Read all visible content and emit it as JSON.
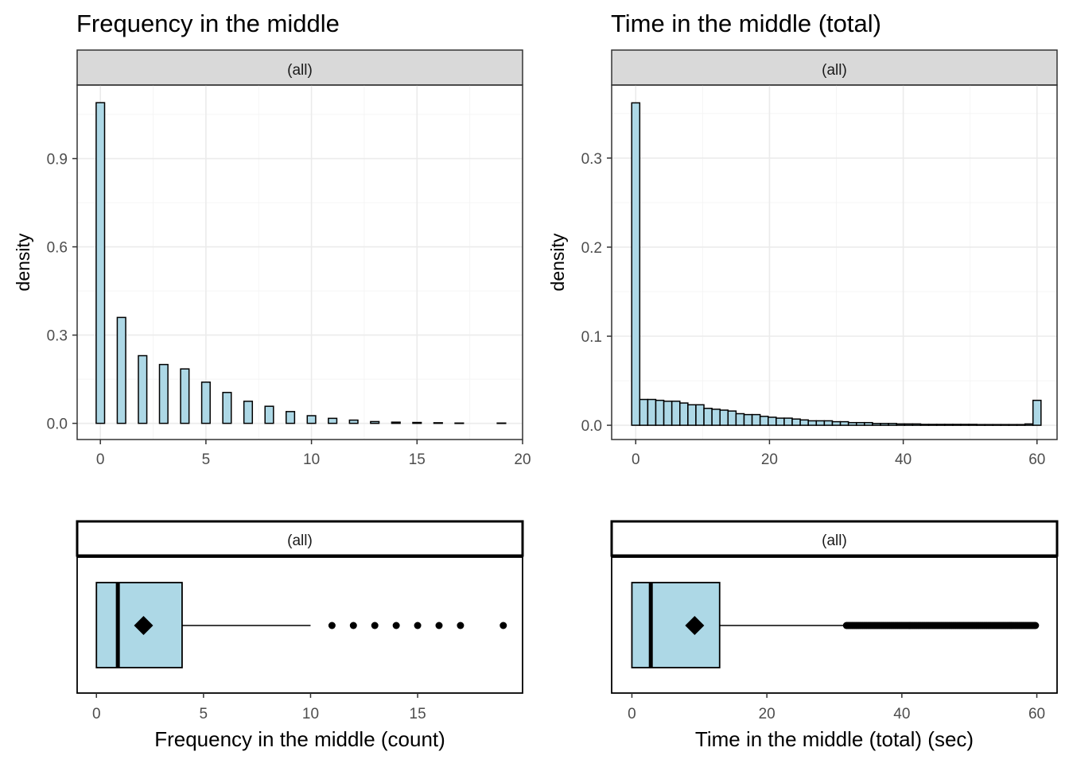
{
  "chart_data": [
    {
      "type": "bar",
      "title": "Frequency in the middle",
      "strip": "(all)",
      "ylabel": "density",
      "xlabel": "",
      "xlim": [
        -1.1,
        20
      ],
      "ylim": [
        -0.055,
        1.15
      ],
      "x_ticks": [
        0,
        5,
        10,
        15,
        20
      ],
      "y_ticks": [
        0.0,
        0.3,
        0.6,
        0.9
      ],
      "y_tick_labels": [
        "0.0",
        "0.3",
        "0.6",
        "0.9"
      ],
      "bar_width": 0.4,
      "grid": true,
      "x": [
        0,
        1,
        2,
        3,
        4,
        5,
        6,
        7,
        8,
        9,
        10,
        11,
        12,
        13,
        14,
        15,
        16,
        17,
        19
      ],
      "values": [
        1.09,
        0.36,
        0.23,
        0.2,
        0.185,
        0.14,
        0.105,
        0.075,
        0.058,
        0.04,
        0.026,
        0.017,
        0.011,
        0.006,
        0.004,
        0.003,
        0.002,
        0.001,
        0.001
      ],
      "color": "#add8e6"
    },
    {
      "type": "bar",
      "title": "Time in the middle (total)",
      "strip": "(all)",
      "ylabel": "density",
      "xlabel": "",
      "xlim": [
        -3.6,
        63
      ],
      "ylim": [
        -0.016,
        0.382
      ],
      "x_ticks": [
        0,
        20,
        40,
        60
      ],
      "y_ticks": [
        0.0,
        0.1,
        0.2,
        0.3
      ],
      "y_tick_labels": [
        "0.0",
        "0.1",
        "0.2",
        "0.3"
      ],
      "bin_width": 1.2,
      "grid": true,
      "x": [
        0,
        1.2,
        2.4,
        3.6,
        4.8,
        6,
        7.2,
        8.4,
        9.6,
        10.8,
        12,
        13.2,
        14.4,
        15.6,
        16.8,
        18,
        19.2,
        20.4,
        21.6,
        22.8,
        24,
        25.2,
        26.4,
        27.6,
        28.8,
        30,
        31.2,
        32.4,
        33.6,
        34.8,
        36,
        37.2,
        38.4,
        39.6,
        40.8,
        42,
        43.2,
        44.4,
        45.6,
        46.8,
        48,
        49.2,
        50.4,
        51.6,
        52.8,
        54,
        55.2,
        56.4,
        57.6,
        58.8,
        60
      ],
      "values": [
        0.362,
        0.029,
        0.029,
        0.028,
        0.027,
        0.027,
        0.025,
        0.023,
        0.023,
        0.019,
        0.018,
        0.017,
        0.016,
        0.013,
        0.012,
        0.012,
        0.01,
        0.009,
        0.008,
        0.008,
        0.007,
        0.006,
        0.005,
        0.005,
        0.005,
        0.004,
        0.004,
        0.003,
        0.003,
        0.003,
        0.002,
        0.002,
        0.002,
        0.0015,
        0.0015,
        0.0015,
        0.001,
        0.001,
        0.001,
        0.001,
        0.001,
        0.001,
        0.001,
        0.0008,
        0.0008,
        0.0008,
        0.0008,
        0.0008,
        0.0008,
        0.0015,
        0.028
      ],
      "color": "#add8e6"
    },
    {
      "type": "box",
      "strip": "(all)",
      "xlabel": "Frequency in the middle (count)",
      "xlim": [
        -0.9,
        19.9
      ],
      "x_ticks": [
        0,
        5,
        10,
        15
      ],
      "min": 0,
      "q1": 0,
      "median": 1,
      "q3": 4,
      "whisker_max": 10,
      "mean": 2.2,
      "outliers": [
        11,
        12,
        13,
        14,
        15,
        16,
        17,
        19
      ],
      "color": "#add8e6"
    },
    {
      "type": "box",
      "strip": "(all)",
      "xlabel": "Time in the middle (total) (sec)",
      "xlim": [
        -3,
        63
      ],
      "x_ticks": [
        0,
        20,
        40,
        60
      ],
      "min": 0,
      "q1": 0,
      "median": 2.8,
      "q3": 13,
      "whisker_max": 31.8,
      "mean": 9.3,
      "outlier_range": [
        31.8,
        60
      ],
      "color": "#add8e6"
    }
  ]
}
